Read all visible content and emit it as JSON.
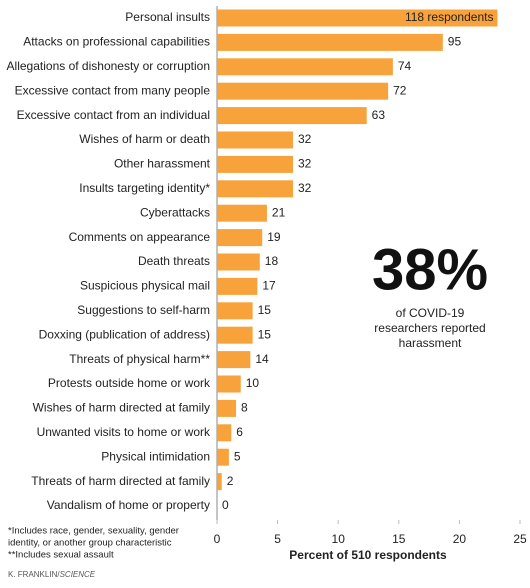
{
  "chart_data": {
    "type": "barh",
    "categories": [
      "Personal insults",
      "Attacks on professional capabilities",
      "Allegations of dishonesty or corruption",
      "Excessive contact from many people",
      "Excessive contact from an individual",
      "Wishes of harm or death",
      "Other harassment",
      "Insults targeting identity*",
      "Cyberattacks",
      "Comments on appearance",
      "Death threats",
      "Suspicious physical mail",
      "Suggestions to self-harm",
      "Doxxing (publication of address)",
      "Threats of physical harm**",
      "Protests outside home or work",
      "Wishes of harm directed at family",
      "Unwanted visits to home or work",
      "Physical intimidation",
      "Threats of harm directed at family",
      "Vandalism of home or property"
    ],
    "values": [
      23.14,
      18.63,
      14.51,
      14.12,
      12.35,
      6.27,
      6.27,
      6.27,
      4.12,
      3.73,
      3.53,
      3.33,
      2.94,
      2.94,
      2.75,
      1.96,
      1.57,
      1.18,
      0.98,
      0.39,
      0
    ],
    "value_labels": [
      "118 respondents",
      "95",
      "74",
      "72",
      "63",
      "32",
      "32",
      "32",
      "21",
      "19",
      "18",
      "17",
      "15",
      "15",
      "14",
      "10",
      "8",
      "6",
      "5",
      "2",
      "0"
    ],
    "color": "#f7a23b",
    "xlim": [
      0,
      25
    ],
    "xticks": [
      0,
      5,
      10,
      15,
      20,
      25
    ],
    "xlabel": "Percent of 510 respondents",
    "annotation": {
      "headline": "38%",
      "lines": [
        "of COVID-19",
        "researchers reported",
        "harassment"
      ]
    },
    "notes": [
      "*Includes race, gender, sexuality, gender",
      "identity, or another group characteristic",
      "**Includes sexual assault"
    ],
    "credit": {
      "author": "K. FRANKLIN/",
      "source": "SCIENCE"
    }
  }
}
